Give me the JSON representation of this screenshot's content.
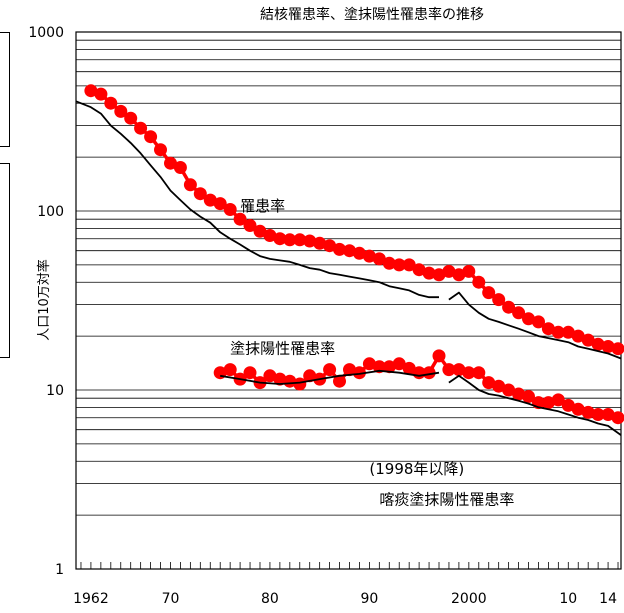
{
  "chart_data": {
    "type": "line",
    "title": "結核罹患率、塗抹陽性罹患率の推移",
    "ylabel": "人口10万対率",
    "yscale": "log",
    "ylim": [
      1,
      1000
    ],
    "xlim": [
      1960.5,
      2015.3
    ],
    "grid": "horizontal",
    "y_ticks": [
      {
        "value": 1,
        "label": "1"
      },
      {
        "value": 10,
        "label": "10"
      },
      {
        "value": 100,
        "label": "100"
      },
      {
        "value": 1000,
        "label": "1000"
      }
    ],
    "x_ticks": [
      {
        "value": 1962,
        "label": "1962"
      },
      {
        "value": 1970,
        "label": "70"
      },
      {
        "value": 1980,
        "label": "80"
      },
      {
        "value": 1990,
        "label": "90"
      },
      {
        "value": 2000,
        "label": "2000"
      },
      {
        "value": 2010,
        "label": "10"
      },
      {
        "value": 2014,
        "label": "14"
      }
    ],
    "series": [
      {
        "name": "罹患率",
        "style": "red-dotted-line",
        "color": "#ff0000",
        "x": [
          1962,
          1963,
          1964,
          1965,
          1966,
          1967,
          1968,
          1969,
          1970,
          1971,
          1972,
          1973,
          1974,
          1975,
          1976,
          1977,
          1978,
          1979,
          1980,
          1981,
          1982,
          1983,
          1984,
          1985,
          1986,
          1987,
          1988,
          1989,
          1990,
          1991,
          1992,
          1993,
          1994,
          1995,
          1996,
          1997,
          1998,
          1999,
          2000,
          2001,
          2002,
          2003,
          2004,
          2005,
          2006,
          2007,
          2008,
          2009,
          2010,
          2011,
          2012,
          2013,
          2014,
          2015
        ],
        "y": [
          470,
          450,
          400,
          360,
          330,
          290,
          260,
          220,
          185,
          175,
          140,
          125,
          115,
          110,
          102,
          90,
          83,
          77,
          73,
          70,
          69,
          69,
          68,
          66,
          64,
          61,
          60,
          58,
          56,
          54,
          51,
          50,
          50,
          47,
          45,
          44,
          46,
          44,
          46,
          40,
          35,
          32,
          29,
          27,
          25,
          24,
          22,
          21,
          21,
          20,
          19,
          18,
          17.5,
          17
        ]
      },
      {
        "name": "塗抹陽性罹患率",
        "style": "red-dotted-line",
        "color": "#ff0000",
        "x": [
          1975,
          1976,
          1977,
          1978,
          1979,
          1980,
          1981,
          1982,
          1983,
          1984,
          1985,
          1986,
          1987,
          1988,
          1989,
          1990,
          1991,
          1992,
          1993,
          1994,
          1995,
          1996,
          1997,
          1998,
          1999,
          2000,
          2001,
          2002,
          2003,
          2004,
          2005,
          2006,
          2007,
          2008,
          2009,
          2010,
          2011,
          2012,
          2013,
          2014,
          2015
        ],
        "y": [
          12.5,
          13,
          11.5,
          12.5,
          11,
          12,
          11.5,
          11.2,
          10.8,
          12,
          11.5,
          13,
          11.2,
          13,
          12.5,
          14,
          13.5,
          13.5,
          14,
          13.2,
          12.5,
          12.5,
          15.5,
          13,
          13,
          12.5,
          12.5,
          11,
          10.5,
          10,
          9.5,
          9.2,
          8.5,
          8.5,
          8.8,
          8.2,
          7.8,
          7.5,
          7.3,
          7.3,
          7
        ]
      },
      {
        "style": "black-line",
        "color": "#000000",
        "x": [
          1960.5,
          1962,
          1963,
          1964,
          1965,
          1966,
          1967,
          1968,
          1969,
          1970,
          1971,
          1972,
          1973,
          1974,
          1975,
          1976,
          1977,
          1978,
          1979,
          1980,
          1981,
          1982,
          1983,
          1984,
          1985,
          1986,
          1987,
          1988,
          1989,
          1990,
          1991,
          1992,
          1993,
          1994,
          1995,
          1996,
          1997,
          null,
          1998,
          1999,
          2000,
          2001,
          2002,
          2003,
          2004,
          2005,
          2006,
          2007,
          2008,
          2009,
          2010,
          2011,
          2012,
          2013,
          2014,
          2015.3
        ],
        "y": [
          410,
          380,
          350,
          300,
          270,
          240,
          210,
          180,
          155,
          130,
          115,
          102,
          93,
          86,
          76,
          70,
          65,
          60,
          56,
          54,
          53,
          52,
          50,
          48,
          47,
          45,
          44,
          43,
          42,
          41,
          40,
          38,
          37,
          36,
          34,
          33,
          33,
          null,
          32,
          35,
          30,
          27,
          25,
          24,
          23,
          22,
          21,
          20,
          19.5,
          19,
          18.5,
          17.5,
          17,
          16.5,
          16,
          15
        ]
      },
      {
        "style": "black-line",
        "color": "#000000",
        "x": [
          1975,
          1977,
          1979,
          1981,
          1983,
          1985,
          1987,
          1989,
          1991,
          1993,
          1995,
          1997,
          null,
          1998,
          1999,
          2000,
          2001,
          2002,
          2003,
          2004,
          2005,
          2006,
          2007,
          2008,
          2009,
          2010,
          2011,
          2012,
          2013,
          2014,
          2015.3
        ],
        "y": [
          12,
          11.5,
          11,
          10.8,
          11,
          11.5,
          12,
          12.3,
          12.8,
          12.5,
          12,
          12.5,
          null,
          11,
          12,
          11,
          10,
          9.5,
          9.3,
          9,
          8.7,
          8.4,
          8,
          7.8,
          7.6,
          7.3,
          7,
          6.8,
          6.5,
          6.3,
          5.6
        ]
      }
    ],
    "annotations": [
      {
        "text": "罹患率",
        "x": 1977,
        "y": 100
      },
      {
        "text": "塗抹陽性罹患率",
        "x": 1976,
        "y": 16
      },
      {
        "text": "(1998年以降)",
        "x": 1990,
        "y": 3.4
      },
      {
        "text": "喀痰塗抹陽性罹患率",
        "x": 1991,
        "y": 2.3
      }
    ]
  }
}
